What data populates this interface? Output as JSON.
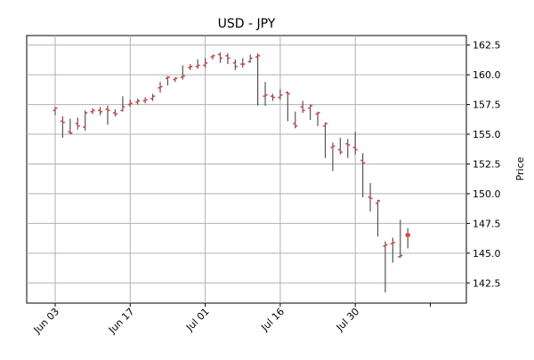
{
  "chart_data": {
    "type": "ohlc",
    "title": "USD - JPY",
    "ylabel": "Price",
    "xlabel": "",
    "ylim": [
      140.8,
      163.3
    ],
    "yticks": [
      142.5,
      145.0,
      147.5,
      150.0,
      152.5,
      155.0,
      157.5,
      160.0,
      162.5
    ],
    "xticks": [
      "Jun 03",
      "Jun 17",
      "Jul 01",
      "Jul 16",
      "Jul 30"
    ],
    "grid": true,
    "y_axis_side": "right",
    "colors": {
      "wick": "#555555",
      "tick": "#e0403c",
      "grid": "#b0b0b0"
    },
    "candles": [
      {
        "date": "Jun 03",
        "open": 157.0,
        "high": 157.3,
        "low": 156.6,
        "close": 157.2
      },
      {
        "date": "Jun 04",
        "open": 156.1,
        "high": 156.5,
        "low": 154.7,
        "close": 156.0
      },
      {
        "date": "Jun 05",
        "open": 155.2,
        "high": 156.3,
        "low": 155.0,
        "close": 155.1
      },
      {
        "date": "Jun 06",
        "open": 155.9,
        "high": 156.4,
        "low": 155.4,
        "close": 155.7
      },
      {
        "date": "Jun 07",
        "open": 155.6,
        "high": 157.0,
        "low": 155.3,
        "close": 156.8
      },
      {
        "date": "Jun 10",
        "open": 156.9,
        "high": 157.2,
        "low": 156.7,
        "close": 157.0
      },
      {
        "date": "Jun 11",
        "open": 157.0,
        "high": 157.3,
        "low": 156.6,
        "close": 156.9
      },
      {
        "date": "Jun 12",
        "open": 157.1,
        "high": 157.4,
        "low": 155.8,
        "close": 157.0
      },
      {
        "date": "Jun 13",
        "open": 156.8,
        "high": 157.1,
        "low": 156.5,
        "close": 156.7
      },
      {
        "date": "Jun 14",
        "open": 157.0,
        "high": 158.2,
        "low": 156.9,
        "close": 157.3
      },
      {
        "date": "Jun 17",
        "open": 157.5,
        "high": 157.9,
        "low": 157.3,
        "close": 157.6
      },
      {
        "date": "Jun 18",
        "open": 157.7,
        "high": 158.0,
        "low": 157.5,
        "close": 157.8
      },
      {
        "date": "Jun 19",
        "open": 157.8,
        "high": 158.1,
        "low": 157.6,
        "close": 157.9
      },
      {
        "date": "Jun 20",
        "open": 158.0,
        "high": 158.4,
        "low": 157.8,
        "close": 158.2
      },
      {
        "date": "Jun 21",
        "open": 158.9,
        "high": 159.4,
        "low": 158.5,
        "close": 159.0
      },
      {
        "date": "Jun 24",
        "open": 159.7,
        "high": 159.9,
        "low": 159.1,
        "close": 159.8
      },
      {
        "date": "Jun 25",
        "open": 159.6,
        "high": 159.8,
        "low": 159.4,
        "close": 159.7
      },
      {
        "date": "Jun 26",
        "open": 159.8,
        "high": 160.8,
        "low": 159.6,
        "close": 159.9
      },
      {
        "date": "Jun 27",
        "open": 160.6,
        "high": 160.9,
        "low": 160.4,
        "close": 160.7
      },
      {
        "date": "Jun 28",
        "open": 160.7,
        "high": 161.3,
        "low": 160.5,
        "close": 160.8
      },
      {
        "date": "Jul 01",
        "open": 160.8,
        "high": 161.4,
        "low": 160.6,
        "close": 161.0
      },
      {
        "date": "Jul 02",
        "open": 161.5,
        "high": 161.7,
        "low": 161.3,
        "close": 161.6
      },
      {
        "date": "Jul 03",
        "open": 161.7,
        "high": 161.9,
        "low": 161.0,
        "close": 161.4
      },
      {
        "date": "Jul 04",
        "open": 161.6,
        "high": 161.8,
        "low": 160.9,
        "close": 161.4
      },
      {
        "date": "Jul 05",
        "open": 161.0,
        "high": 161.3,
        "low": 160.4,
        "close": 160.7
      },
      {
        "date": "Jul 08",
        "open": 160.9,
        "high": 161.4,
        "low": 160.6,
        "close": 160.9
      },
      {
        "date": "Jul 09",
        "open": 161.1,
        "high": 161.7,
        "low": 161.0,
        "close": 161.4
      },
      {
        "date": "Jul 10",
        "open": 161.5,
        "high": 161.8,
        "low": 157.4,
        "close": 161.6
      },
      {
        "date": "Jul 11",
        "open": 158.2,
        "high": 159.4,
        "low": 157.4,
        "close": 158.3
      },
      {
        "date": "Jul 12",
        "open": 158.2,
        "high": 158.4,
        "low": 157.8,
        "close": 158.1
      },
      {
        "date": "Jul 16",
        "open": 158.1,
        "high": 158.8,
        "low": 157.9,
        "close": 158.3
      },
      {
        "date": "Jul 17",
        "open": 158.5,
        "high": 158.6,
        "low": 156.1,
        "close": 158.4
      },
      {
        "date": "Jul 18",
        "open": 155.9,
        "high": 156.9,
        "low": 155.5,
        "close": 155.7
      },
      {
        "date": "Jul 19",
        "open": 157.3,
        "high": 157.8,
        "low": 156.8,
        "close": 157.0
      },
      {
        "date": "Jul 22",
        "open": 157.2,
        "high": 157.5,
        "low": 156.2,
        "close": 157.4
      },
      {
        "date": "Jul 23",
        "open": 156.7,
        "high": 156.9,
        "low": 155.7,
        "close": 156.8
      },
      {
        "date": "Jul 24",
        "open": 155.7,
        "high": 156.0,
        "low": 153.0,
        "close": 155.9
      },
      {
        "date": "Jul 25",
        "open": 153.9,
        "high": 154.3,
        "low": 151.9,
        "close": 154.0
      },
      {
        "date": "Jul 26",
        "open": 153.7,
        "high": 154.7,
        "low": 153.3,
        "close": 153.5
      },
      {
        "date": "Jul 29",
        "open": 154.2,
        "high": 154.6,
        "low": 153.0,
        "close": 154.1
      },
      {
        "date": "Jul 30",
        "open": 153.9,
        "high": 155.2,
        "low": 153.3,
        "close": 153.7
      },
      {
        "date": "Jul 31",
        "open": 152.8,
        "high": 153.4,
        "low": 149.7,
        "close": 152.6
      },
      {
        "date": "Aug 01",
        "open": 149.7,
        "high": 150.9,
        "low": 148.5,
        "close": 149.6
      },
      {
        "date": "Aug 02",
        "open": 149.2,
        "high": 149.5,
        "low": 146.4,
        "close": 149.4
      },
      {
        "date": "Aug 05",
        "open": 145.6,
        "high": 146.0,
        "low": 141.7,
        "close": 145.7
      },
      {
        "date": "Aug 06",
        "open": 145.8,
        "high": 146.3,
        "low": 144.2,
        "close": 145.9
      },
      {
        "date": "Aug 07",
        "open": 144.7,
        "high": 147.8,
        "low": 144.6,
        "close": 144.8
      },
      {
        "date": "Aug 08",
        "open": 146.6,
        "high": 147.1,
        "low": 145.4,
        "close": 146.5
      }
    ]
  }
}
